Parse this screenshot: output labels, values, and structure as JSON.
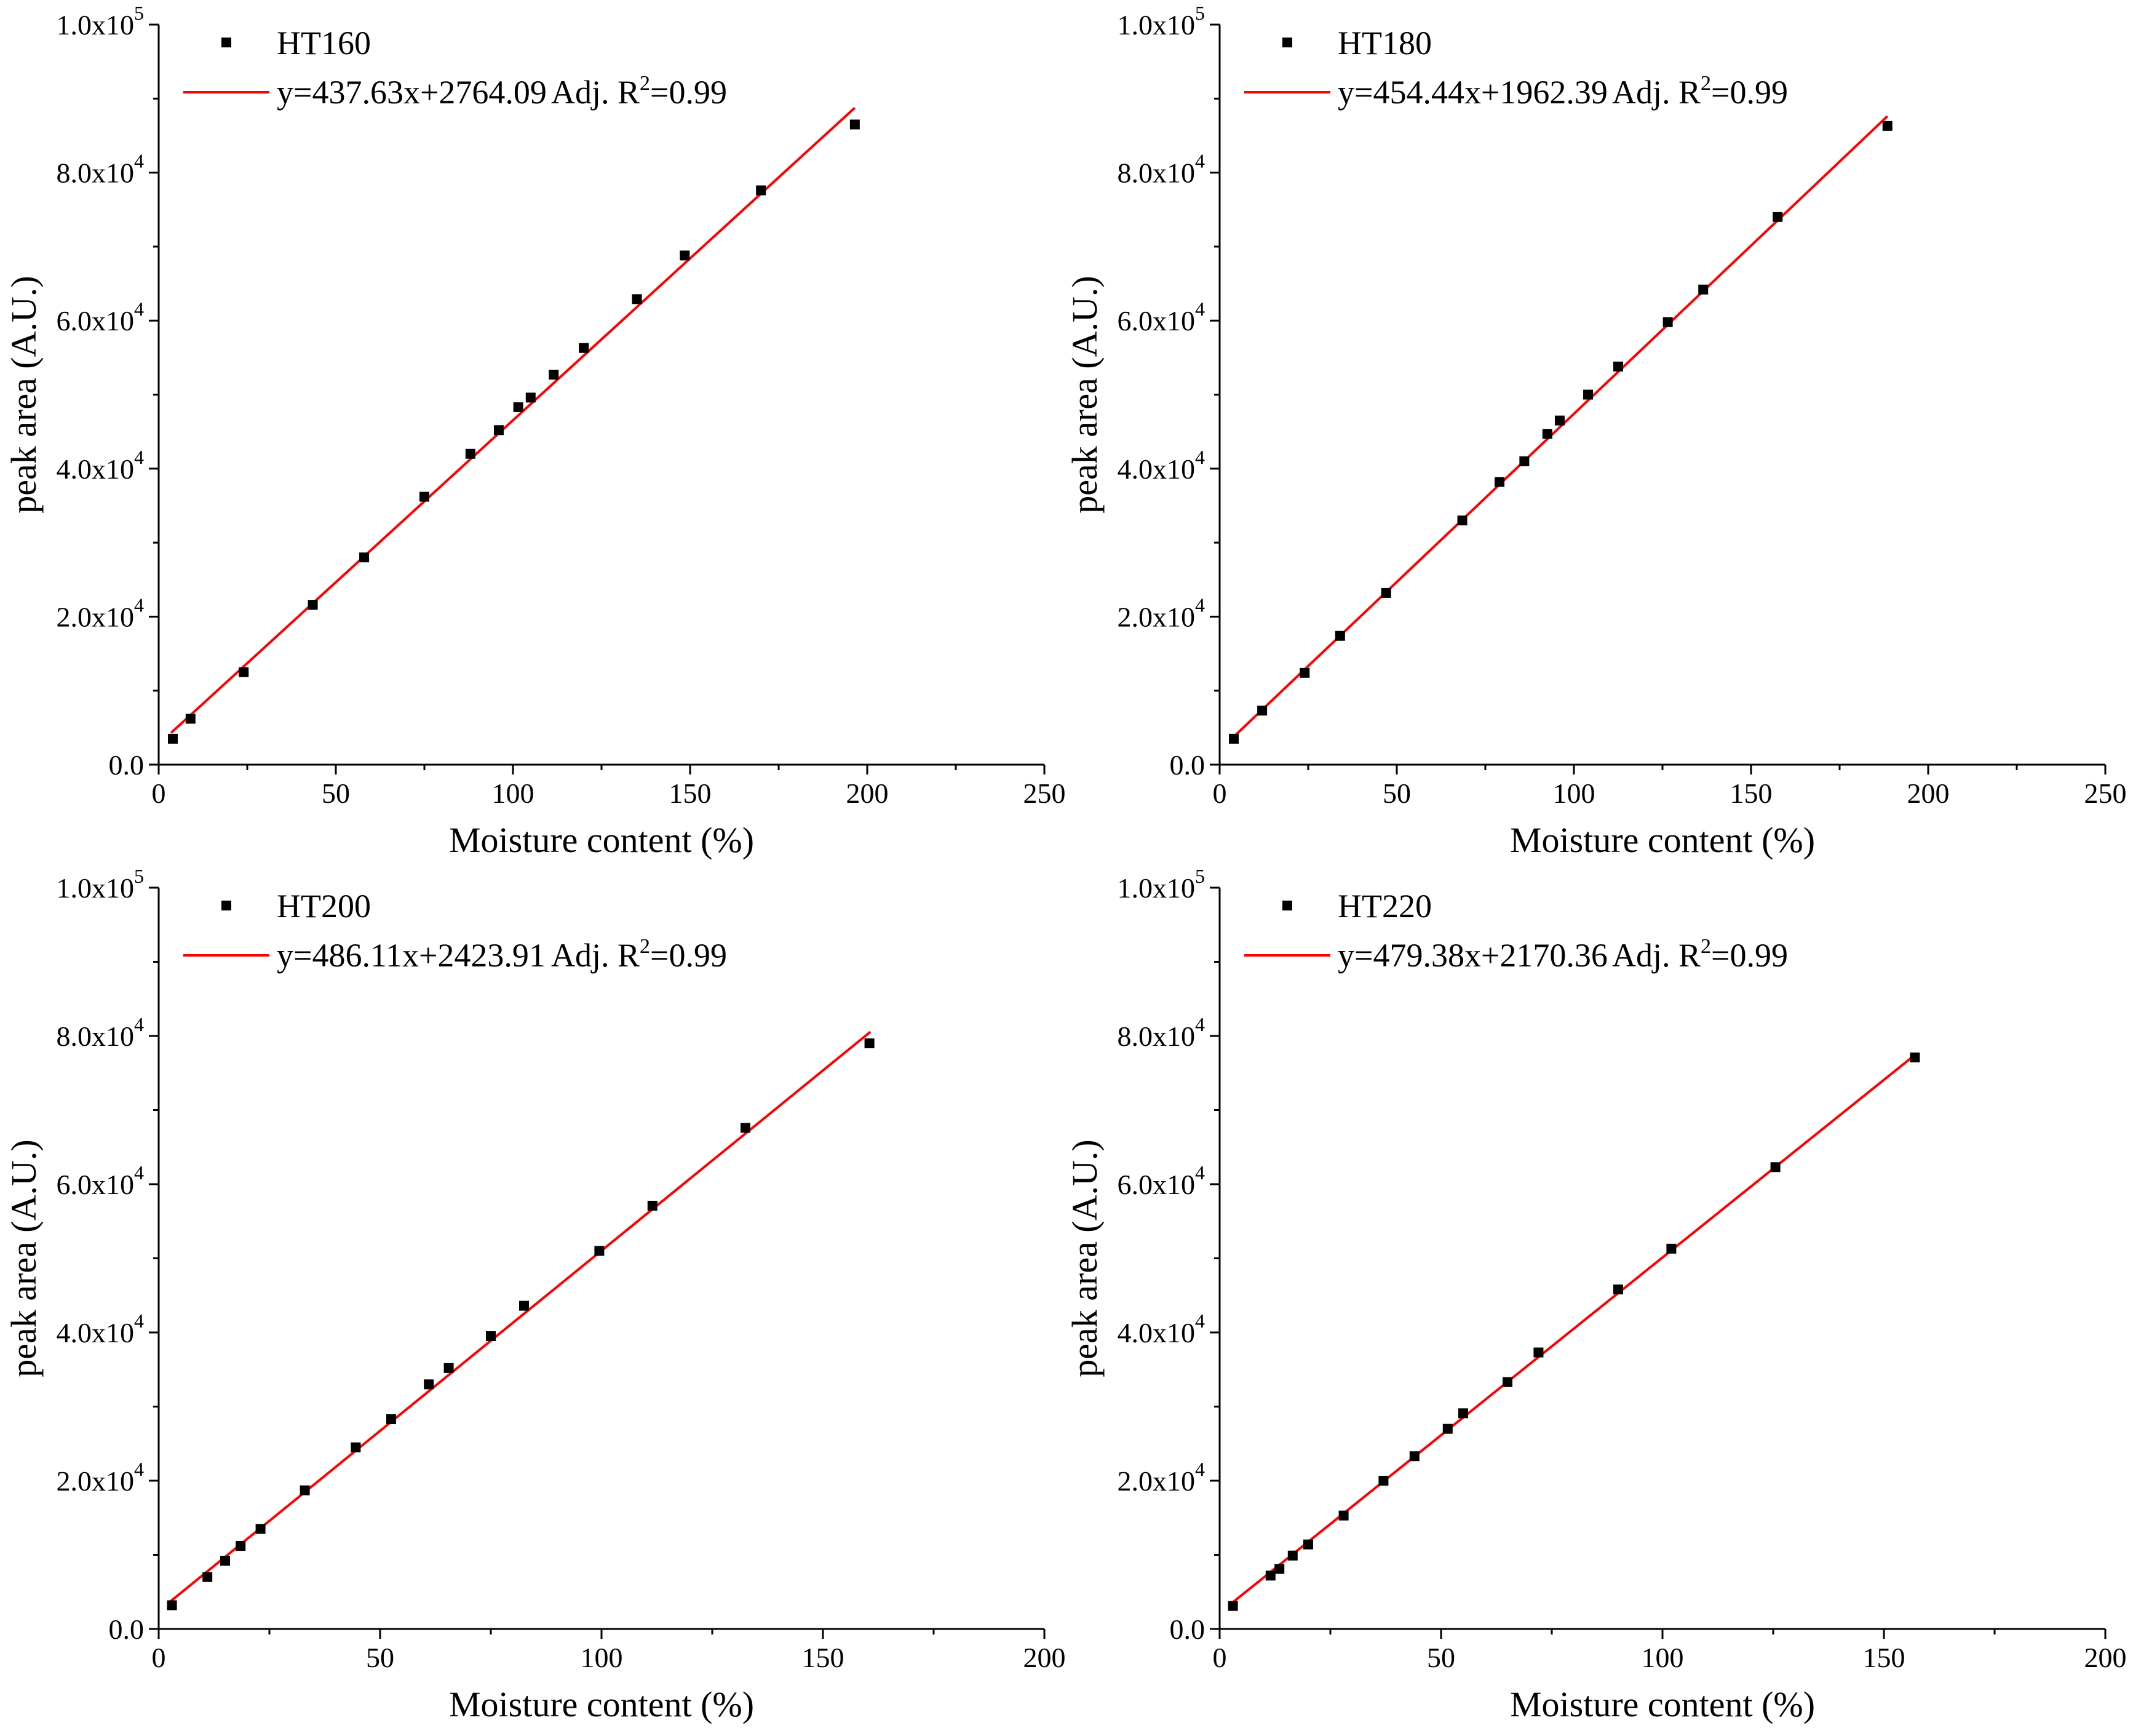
{
  "figure": {
    "fit_color": "#ff0000",
    "marker_color": "#000000",
    "marker_shape": "square"
  },
  "chart_data": [
    {
      "id": "ht160",
      "type": "scatter",
      "series_name": "HT160",
      "fit_label": "y=437.63x+2764.09",
      "adj_label": "Adj. R",
      "r2_sup": "2",
      "r2_value": "=0.99",
      "fit": {
        "slope": 437.63,
        "intercept": 2764.09,
        "x_range": [
          3.5,
          196.5
        ]
      },
      "xlabel": "Moisture content (%)",
      "ylabel": "peak area (A.U.)",
      "xlim": [
        0,
        250
      ],
      "ylim": [
        0,
        100000
      ],
      "xticks": [
        0,
        50,
        100,
        150,
        200,
        250
      ],
      "xtick_labels": [
        "0",
        "50",
        "100",
        "150",
        "200",
        "250"
      ],
      "yticks": [
        0,
        20000,
        40000,
        60000,
        80000,
        100000
      ],
      "ytick_labels": [
        {
          "mant": "0.0",
          "exp": ""
        },
        {
          "mant": "2.0x10",
          "exp": "4"
        },
        {
          "mant": "4.0x10",
          "exp": "4"
        },
        {
          "mant": "6.0x10",
          "exp": "4"
        },
        {
          "mant": "8.0x10",
          "exp": "4"
        },
        {
          "mant": "1.0x10",
          "exp": "5"
        }
      ],
      "x": [
        4,
        9,
        24,
        43.5,
        58,
        75,
        88,
        96,
        101.5,
        105,
        111.5,
        120,
        135,
        148.5,
        170,
        196.5
      ],
      "y": [
        3500,
        6200,
        12500,
        21600,
        28000,
        36200,
        42000,
        45200,
        48300,
        49600,
        52700,
        56300,
        62900,
        68800,
        77600,
        86500
      ]
    },
    {
      "id": "ht180",
      "type": "scatter",
      "series_name": "HT180",
      "fit_label": "y=454.44x+1962.39",
      "adj_label": "Adj. R",
      "r2_sup": "2",
      "r2_value": "=0.99",
      "fit": {
        "slope": 454.44,
        "intercept": 1962.39,
        "x_range": [
          3.5,
          188.5
        ]
      },
      "xlabel": "Moisture content (%)",
      "ylabel": "peak area (A.U.)",
      "xlim": [
        0,
        250
      ],
      "ylim": [
        0,
        100000
      ],
      "xticks": [
        0,
        50,
        100,
        150,
        200,
        250
      ],
      "xtick_labels": [
        "0",
        "50",
        "100",
        "150",
        "200",
        "250"
      ],
      "yticks": [
        0,
        20000,
        40000,
        60000,
        80000,
        100000
      ],
      "ytick_labels": [
        {
          "mant": "0.0",
          "exp": ""
        },
        {
          "mant": "2.0x10",
          "exp": "4"
        },
        {
          "mant": "4.0x10",
          "exp": "4"
        },
        {
          "mant": "6.0x10",
          "exp": "4"
        },
        {
          "mant": "8.0x10",
          "exp": "4"
        },
        {
          "mant": "1.0x10",
          "exp": "5"
        }
      ],
      "x": [
        4,
        12,
        24,
        34,
        47,
        68.5,
        79,
        86,
        92.5,
        96,
        104,
        112.5,
        126.5,
        136.5,
        157.5,
        188.5
      ],
      "y": [
        3500,
        7300,
        12400,
        17400,
        23200,
        33000,
        38200,
        41000,
        44700,
        46500,
        50000,
        53800,
        59800,
        64200,
        74000,
        86300
      ]
    },
    {
      "id": "ht200",
      "type": "scatter",
      "series_name": "HT200",
      "fit_label": "y=486.11x+2423.91",
      "adj_label": "Adj. R",
      "r2_sup": "2",
      "r2_value": "=0.99",
      "fit": {
        "slope": 486.11,
        "intercept": 2423.91,
        "x_range": [
          2.5,
          160.7
        ]
      },
      "xlabel": "Moisture content (%)",
      "ylabel": "peak area (A.U.)",
      "xlim": [
        0,
        200
      ],
      "ylim": [
        0,
        100000
      ],
      "xticks": [
        0,
        50,
        100,
        150,
        200
      ],
      "xtick_labels": [
        "0",
        "50",
        "100",
        "150",
        "200"
      ],
      "yticks": [
        0,
        20000,
        40000,
        60000,
        80000,
        100000
      ],
      "ytick_labels": [
        {
          "mant": "0.0",
          "exp": ""
        },
        {
          "mant": "2.0x10",
          "exp": "4"
        },
        {
          "mant": "4.0x10",
          "exp": "4"
        },
        {
          "mant": "6.0x10",
          "exp": "4"
        },
        {
          "mant": "8.0x10",
          "exp": "4"
        },
        {
          "mant": "1.0x10",
          "exp": "5"
        }
      ],
      "x": [
        3,
        11,
        15,
        18.5,
        23,
        33,
        44.5,
        52.5,
        61,
        65.5,
        75,
        82.5,
        99.5,
        111.5,
        132.5,
        160.5
      ],
      "y": [
        3200,
        7000,
        9200,
        11200,
        13500,
        18700,
        24500,
        28300,
        33000,
        35200,
        39500,
        43600,
        51000,
        57100,
        67600,
        79000
      ]
    },
    {
      "id": "ht220",
      "type": "scatter",
      "series_name": "HT220",
      "fit_label": "y=479.38x+2170.36",
      "adj_label": "Adj. R",
      "r2_sup": "2",
      "r2_value": "=0.99",
      "fit": {
        "slope": 479.38,
        "intercept": 2170.36,
        "x_range": [
          2.5,
          157
        ]
      },
      "xlabel": "Moisture content (%)",
      "ylabel": "peak area (A.U.)",
      "xlim": [
        0,
        200
      ],
      "ylim": [
        0,
        100000
      ],
      "xticks": [
        0,
        50,
        100,
        150,
        200
      ],
      "xtick_labels": [
        "0",
        "50",
        "100",
        "150",
        "200"
      ],
      "yticks": [
        0,
        20000,
        40000,
        60000,
        80000,
        100000
      ],
      "ytick_labels": [
        {
          "mant": "0.0",
          "exp": ""
        },
        {
          "mant": "2.0x10",
          "exp": "4"
        },
        {
          "mant": "4.0x10",
          "exp": "4"
        },
        {
          "mant": "6.0x10",
          "exp": "4"
        },
        {
          "mant": "8.0x10",
          "exp": "4"
        },
        {
          "mant": "1.0x10",
          "exp": "5"
        }
      ],
      "x": [
        3,
        11.5,
        13.5,
        16.5,
        20,
        28,
        37,
        44,
        51.5,
        55,
        65,
        72,
        90,
        102,
        125.5,
        157
      ],
      "y": [
        3100,
        7200,
        8100,
        9900,
        11400,
        15300,
        20000,
        23300,
        27000,
        29100,
        33300,
        37300,
        45800,
        51300,
        62300,
        77100
      ]
    }
  ]
}
